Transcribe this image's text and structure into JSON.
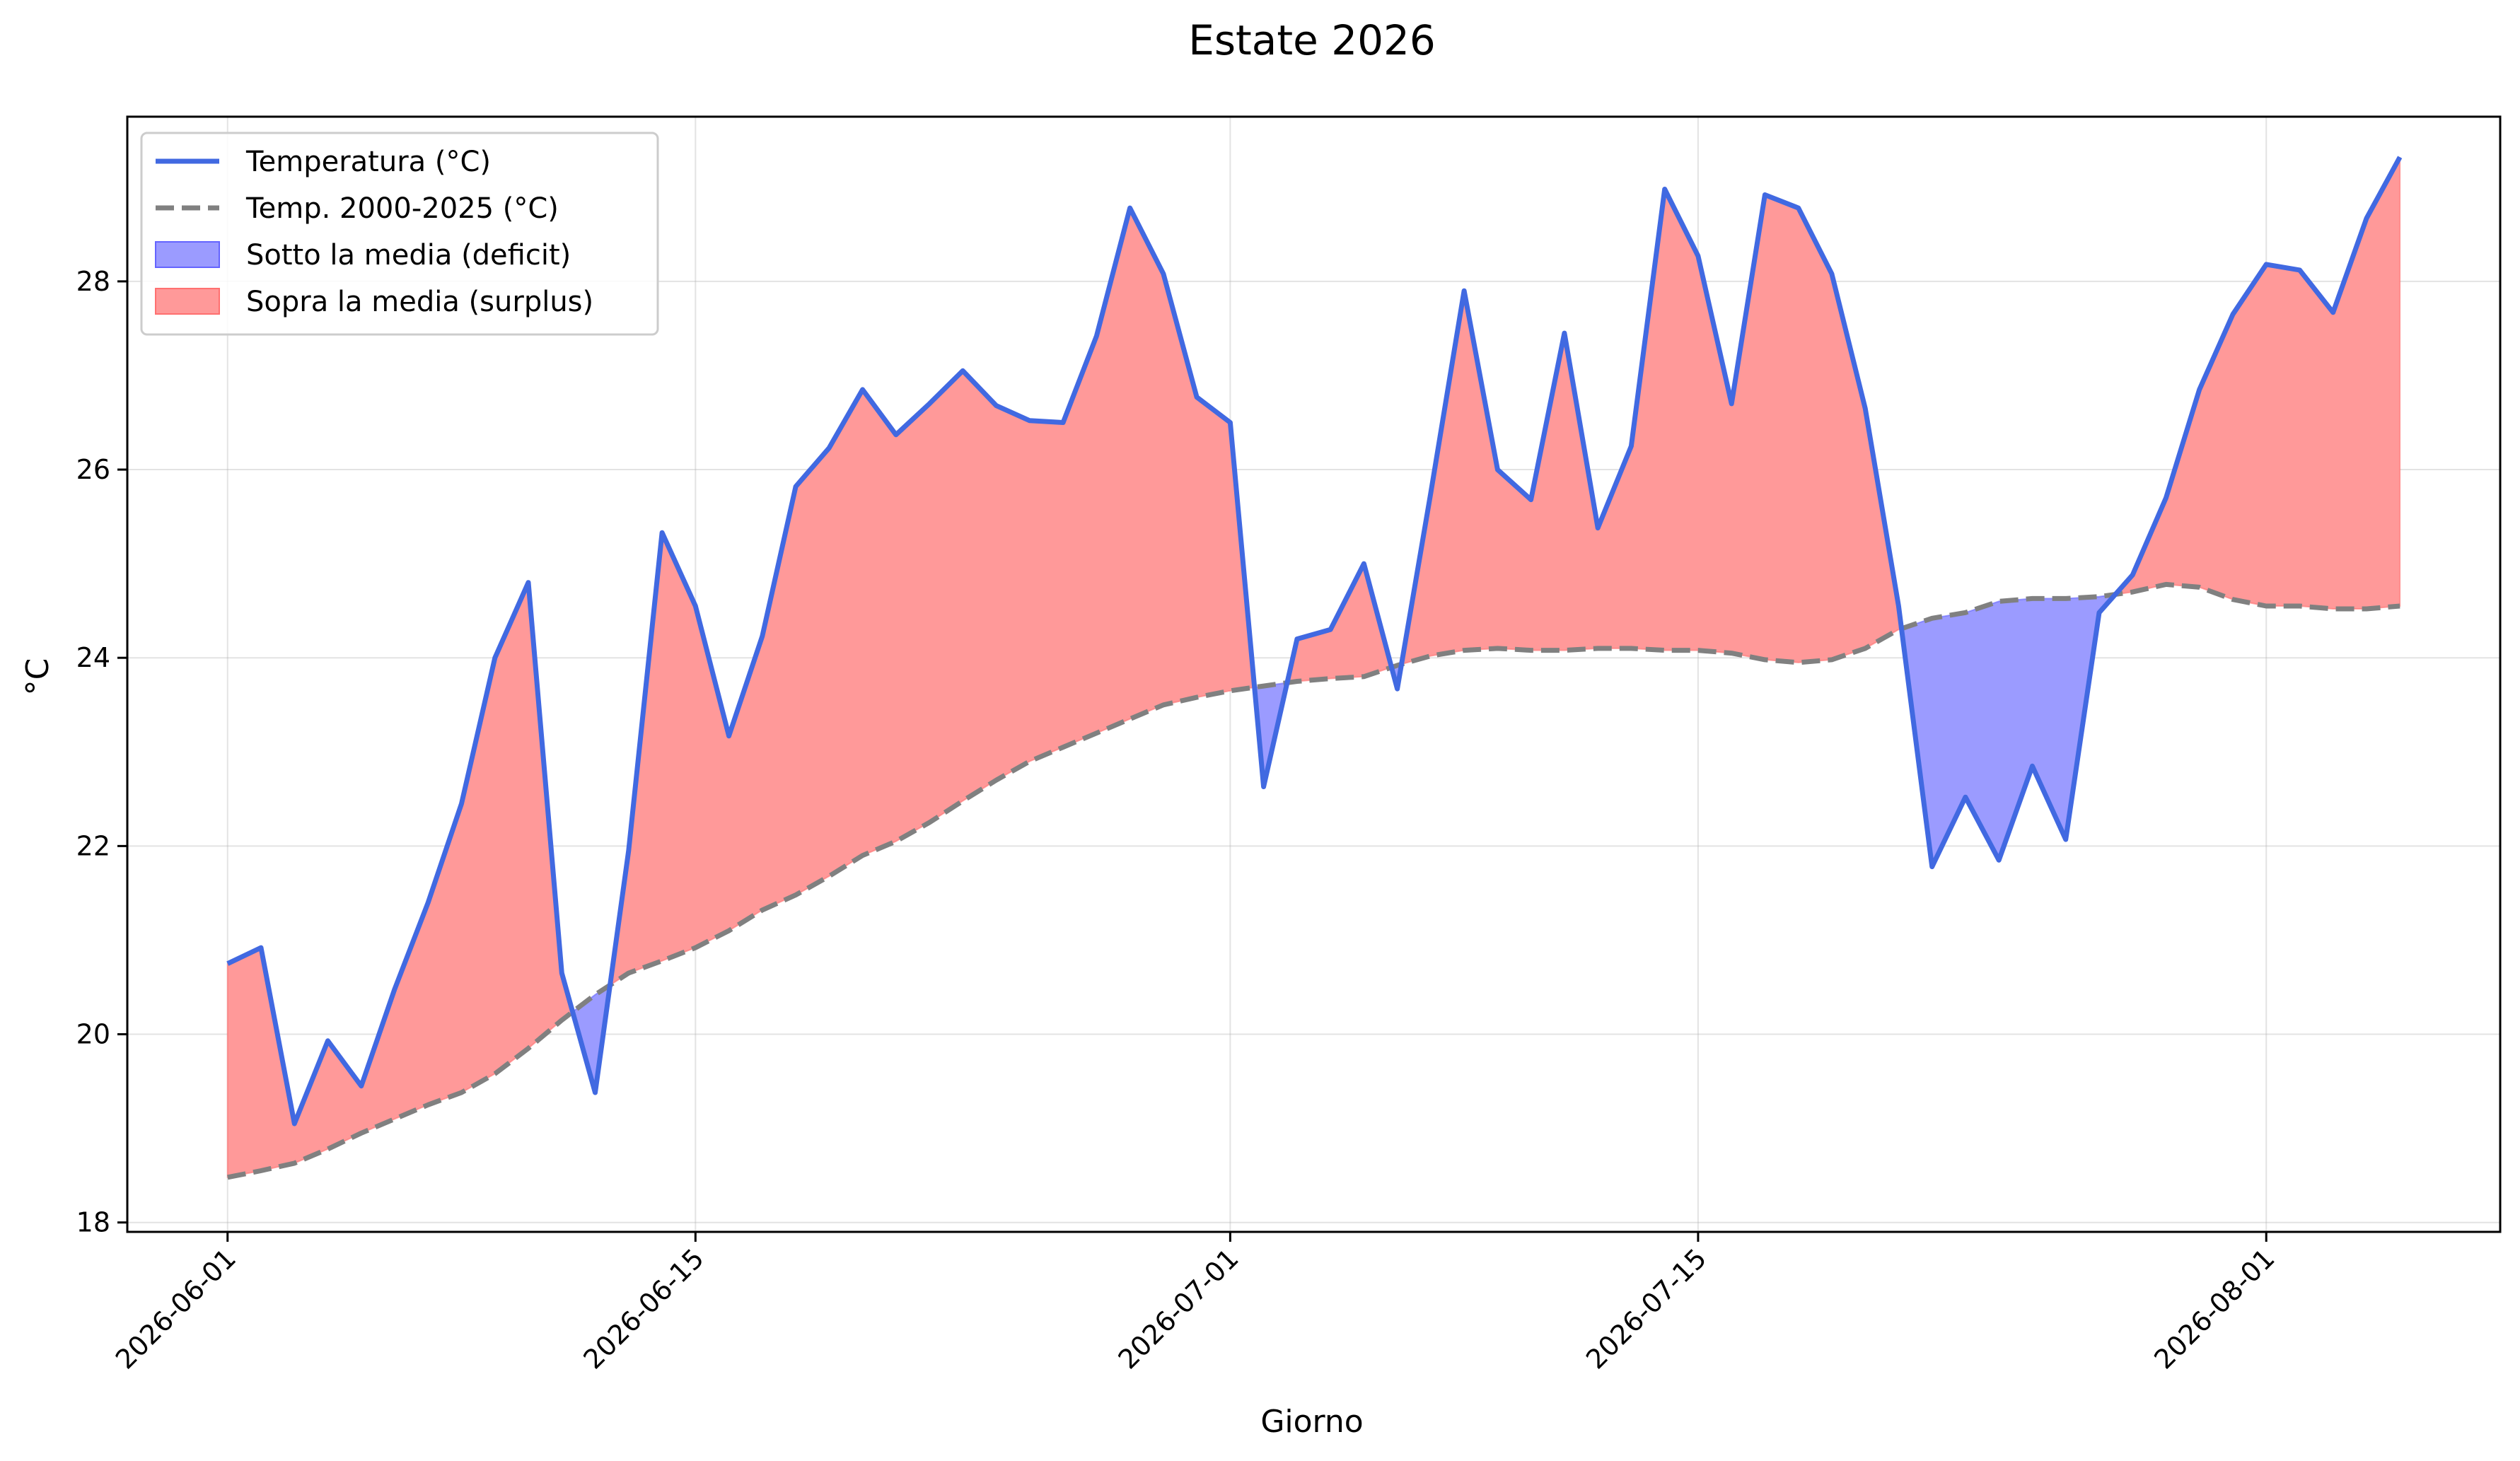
{
  "chart_data": {
    "type": "area",
    "title": "Estate 2026",
    "xlabel": "Giorno",
    "ylabel": "°C",
    "x": [
      "2026-06-01",
      "2026-06-02",
      "2026-06-03",
      "2026-06-04",
      "2026-06-05",
      "2026-06-06",
      "2026-06-07",
      "2026-06-08",
      "2026-06-09",
      "2026-06-10",
      "2026-06-11",
      "2026-06-12",
      "2026-06-13",
      "2026-06-14",
      "2026-06-15",
      "2026-06-16",
      "2026-06-17",
      "2026-06-18",
      "2026-06-19",
      "2026-06-20",
      "2026-06-21",
      "2026-06-22",
      "2026-06-23",
      "2026-06-24",
      "2026-06-25",
      "2026-06-26",
      "2026-06-27",
      "2026-06-28",
      "2026-06-29",
      "2026-06-30",
      "2026-07-01",
      "2026-07-02",
      "2026-07-03",
      "2026-07-04",
      "2026-07-05",
      "2026-07-06",
      "2026-07-07",
      "2026-07-08",
      "2026-07-09",
      "2026-07-10",
      "2026-07-11",
      "2026-07-12",
      "2026-07-13",
      "2026-07-14",
      "2026-07-15",
      "2026-07-16",
      "2026-07-17",
      "2026-07-18",
      "2026-07-19",
      "2026-07-20",
      "2026-07-21",
      "2026-07-22",
      "2026-07-23",
      "2026-07-24",
      "2026-07-25",
      "2026-07-26",
      "2026-07-27",
      "2026-07-28",
      "2026-07-29",
      "2026-07-30",
      "2026-07-31",
      "2026-08-01",
      "2026-08-02",
      "2026-08-03",
      "2026-08-04",
      "2026-08-05"
    ],
    "series": [
      {
        "name": "Temperatura (°C)",
        "color": "#4169e1",
        "style": "solid",
        "values": [
          20.75,
          20.92,
          19.05,
          19.93,
          19.45,
          20.48,
          21.4,
          22.45,
          24.0,
          24.8,
          20.65,
          19.38,
          21.95,
          25.33,
          24.55,
          23.17,
          24.23,
          25.82,
          26.23,
          26.85,
          26.37,
          26.7,
          27.05,
          26.68,
          26.52,
          26.5,
          27.42,
          28.78,
          28.08,
          26.77,
          26.5,
          22.63,
          24.2,
          24.3,
          25.0,
          23.67,
          25.75,
          27.9,
          26.0,
          25.68,
          27.45,
          25.38,
          26.25,
          28.98,
          28.27,
          26.7,
          28.92,
          28.78,
          28.08,
          26.65,
          24.55,
          21.78,
          22.52,
          21.85,
          22.85,
          22.07,
          24.48,
          24.88,
          25.7,
          26.85,
          27.65,
          28.18,
          28.12,
          27.67,
          28.67,
          29.32
        ]
      },
      {
        "name": "Temp. 2000-2025 (°C)",
        "color": "#808080",
        "style": "dashed",
        "values": [
          18.48,
          18.55,
          18.63,
          18.78,
          18.95,
          19.1,
          19.25,
          19.38,
          19.58,
          19.85,
          20.15,
          20.42,
          20.65,
          20.78,
          20.92,
          21.1,
          21.32,
          21.48,
          21.68,
          21.9,
          22.05,
          22.25,
          22.48,
          22.7,
          22.9,
          23.05,
          23.2,
          23.35,
          23.5,
          23.58,
          23.65,
          23.7,
          23.75,
          23.78,
          23.8,
          23.92,
          24.02,
          24.08,
          24.1,
          24.08,
          24.08,
          24.1,
          24.1,
          24.08,
          24.08,
          24.05,
          23.98,
          23.95,
          23.98,
          24.1,
          24.3,
          24.42,
          24.48,
          24.6,
          24.63,
          24.63,
          24.65,
          24.7,
          24.78,
          24.75,
          24.62,
          24.55,
          24.55,
          24.52,
          24.52,
          24.55
        ]
      }
    ],
    "fills": [
      {
        "name": "Sotto la media (deficit)",
        "color": "#9b9bff",
        "edge": "#6464ff",
        "when": "below"
      },
      {
        "name": "Sopra la media (surplus)",
        "color": "#ff9999",
        "edge": "#ff7070",
        "when": "above"
      }
    ],
    "xticks": [
      "2026-06-01",
      "2026-06-15",
      "2026-07-01",
      "2026-07-15",
      "2026-08-01"
    ],
    "yticks": [
      18,
      20,
      22,
      24,
      26,
      28
    ],
    "ylim": [
      17.9,
      29.75
    ],
    "xlim": [
      "2026-05-29",
      "2026-08-08"
    ],
    "grid": true,
    "legend_position": "top-left"
  }
}
